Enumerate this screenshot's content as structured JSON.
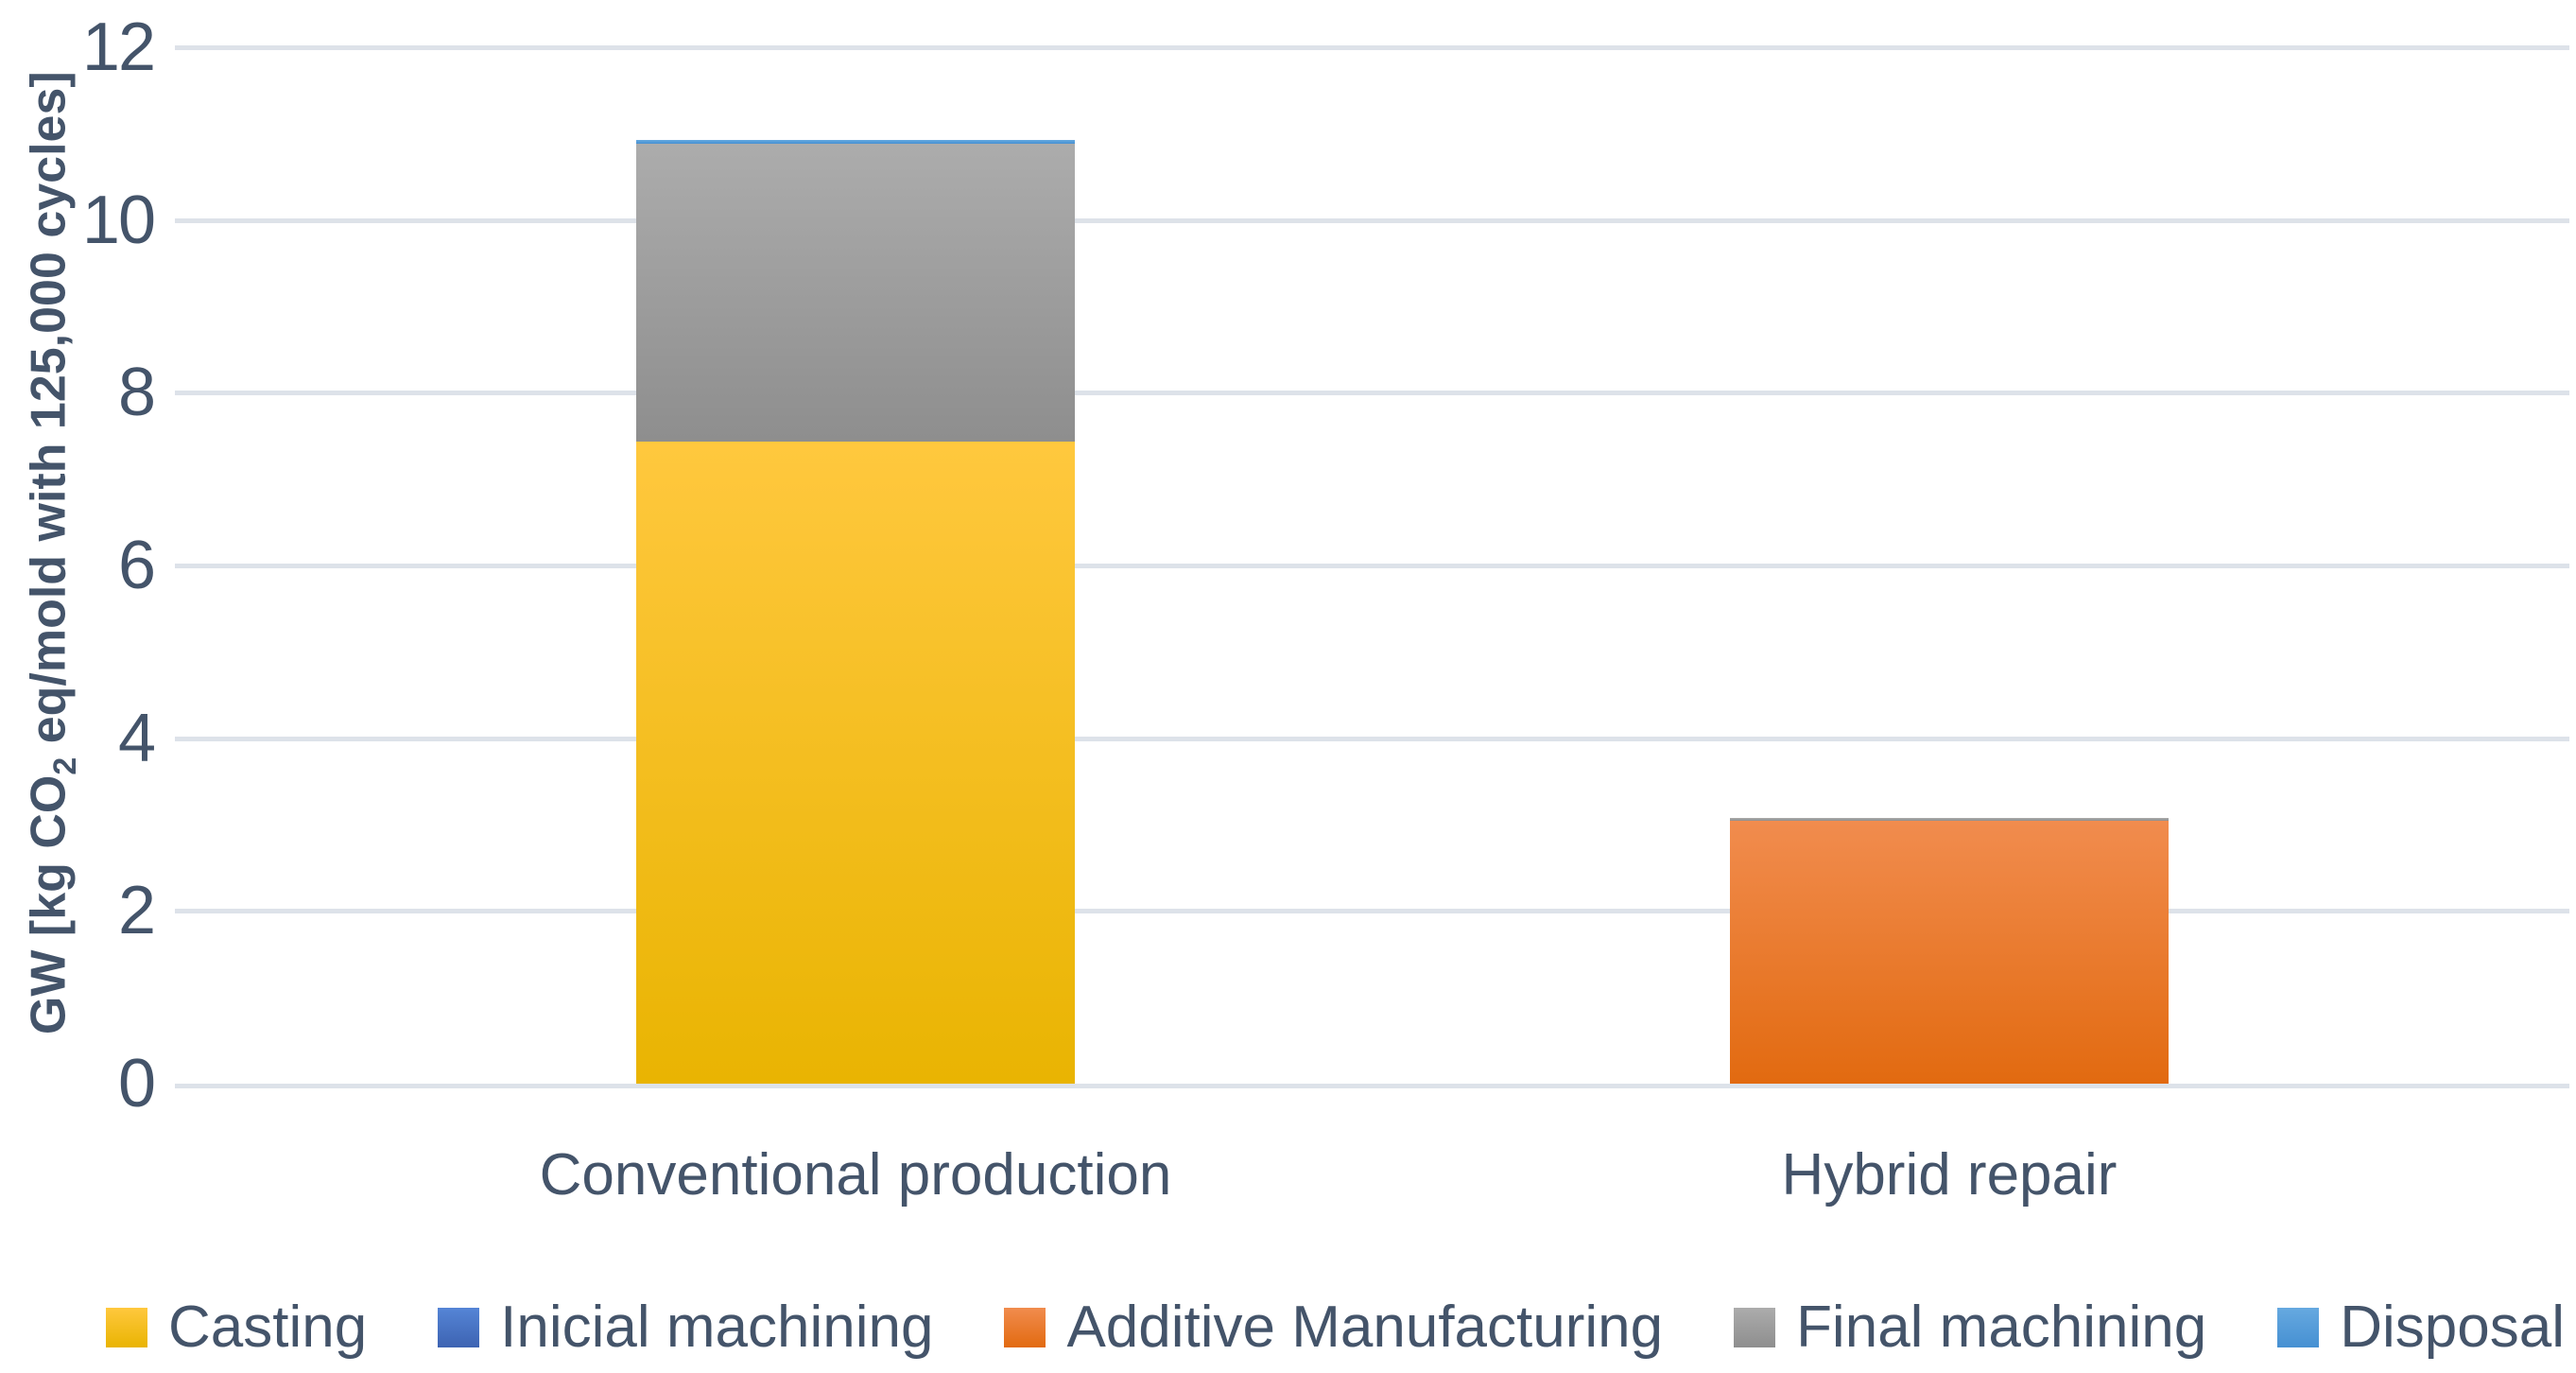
{
  "colors": {
    "text": "#44546A",
    "gridline": "#DDE2E9",
    "background": "#FFFFFF"
  },
  "chart_data": {
    "type": "bar",
    "stacked": true,
    "title": "",
    "categories": [
      "Conventional production",
      "Hybrid repair"
    ],
    "series": [
      {
        "name": "Casting",
        "values": [
          7.43,
          0
        ],
        "color_top": "#FFC83E",
        "color_bottom": "#E9B402"
      },
      {
        "name": "Inicial machining",
        "values": [
          0,
          0
        ],
        "color_top": "#5585D6",
        "color_bottom": "#3D63B2"
      },
      {
        "name": "Additive Manufacturing",
        "values": [
          0,
          3.04
        ],
        "color_top": "#F18C4E",
        "color_bottom": "#E26A10"
      },
      {
        "name": "Final machining",
        "values": [
          3.45,
          0.04
        ],
        "color_top": "#ACACAC",
        "color_bottom": "#8E8E8E"
      },
      {
        "name": "Disposal",
        "values": [
          0.05,
          0
        ],
        "color_top": "#66A9E0",
        "color_bottom": "#4690D2"
      }
    ],
    "ylabel": "GW [kg CO2 eq/mold with 125,000 cycles]",
    "ylabel_parts": {
      "pre_sub": "GW [kg CO",
      "sub": "2",
      "post_sub": " eq/mold with 125,000 cycles]"
    },
    "yticks": [
      0,
      2,
      4,
      6,
      8,
      10,
      12
    ],
    "ylim": [
      0,
      12
    ],
    "grid": true,
    "legend_position": "bottom"
  }
}
